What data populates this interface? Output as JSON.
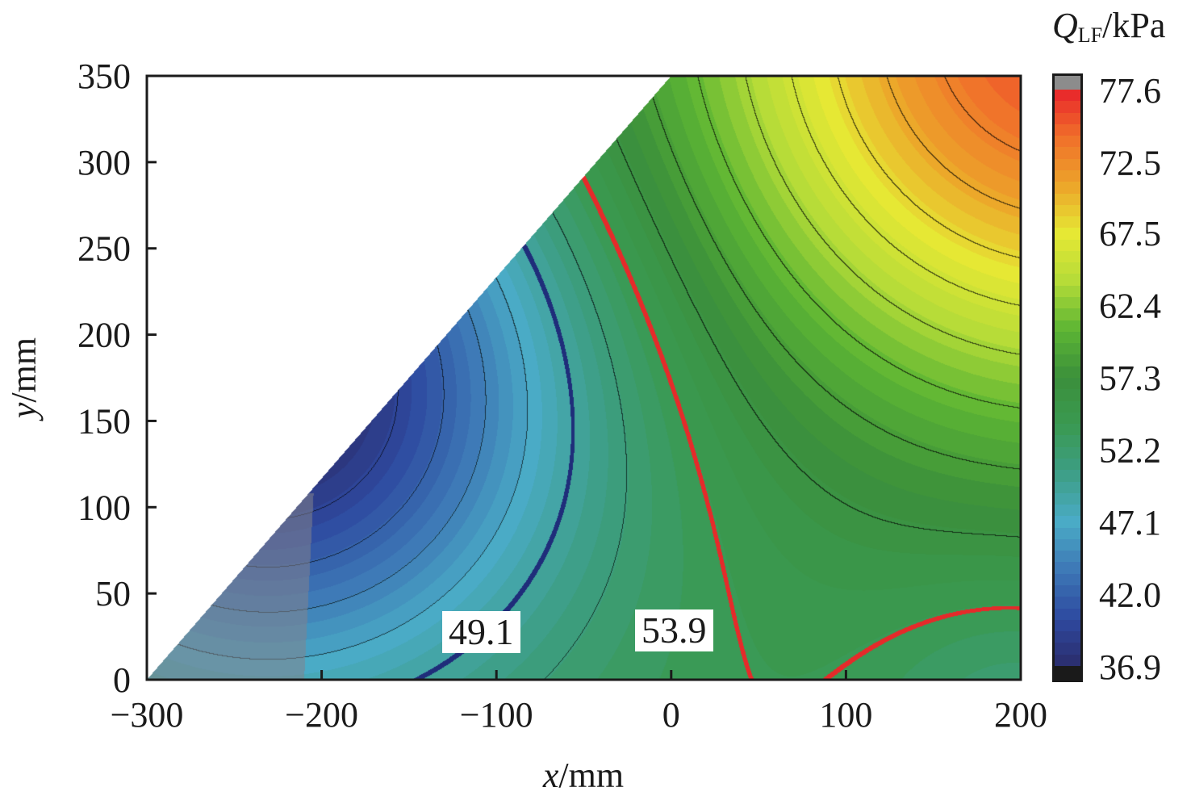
{
  "chart_data": {
    "type": "heatmap",
    "subtype": "filled-contour",
    "xlabel": {
      "var": "x",
      "unit": "/mm"
    },
    "ylabel": {
      "var": "y",
      "unit": "/mm"
    },
    "xlim": [
      -300,
      200
    ],
    "ylim": [
      0,
      350
    ],
    "xticks": [
      "−300",
      "−200",
      "−100",
      "0",
      "100",
      "200"
    ],
    "xtick_values": [
      -300,
      -200,
      -100,
      0,
      100,
      200
    ],
    "yticks": [
      "0",
      "50",
      "100",
      "150",
      "200",
      "250",
      "300",
      "350"
    ],
    "ytick_values": [
      0,
      50,
      100,
      150,
      200,
      250,
      300,
      350
    ],
    "domain": "triangle region below line from (-300,0) to (0,350); region x < about -210 shaded gray",
    "colorbar": {
      "title_var": "Q",
      "title_sub": "LF",
      "title_unit": "/kPa",
      "ticks": [
        "77.6",
        "72.5",
        "67.5",
        "62.4",
        "57.3",
        "52.2",
        "47.1",
        "42.0",
        "36.9"
      ],
      "tick_values": [
        77.6,
        72.5,
        67.5,
        62.4,
        57.3,
        52.2,
        47.1,
        42.0,
        36.9
      ],
      "range": [
        36.9,
        77.6
      ],
      "colors": [
        "#2b2d6c",
        "#2e4aa0",
        "#3d78b6",
        "#4aabc6",
        "#3d9e86",
        "#3a9a52",
        "#3b8f3b",
        "#5cb534",
        "#b5dc38",
        "#e6e834",
        "#eca52a",
        "#f0702a",
        "#e8232b"
      ],
      "over_color": "#8c8c8c",
      "under_color": "#1a1a1a"
    },
    "contour_labels": [
      "49.1",
      "53.9"
    ],
    "highlight_contours": [
      {
        "value": 49.1,
        "color": "#1f2d7a"
      },
      {
        "value": 53.9,
        "color": "#e52a2a"
      }
    ],
    "contour_line_interval": 2.4
  }
}
